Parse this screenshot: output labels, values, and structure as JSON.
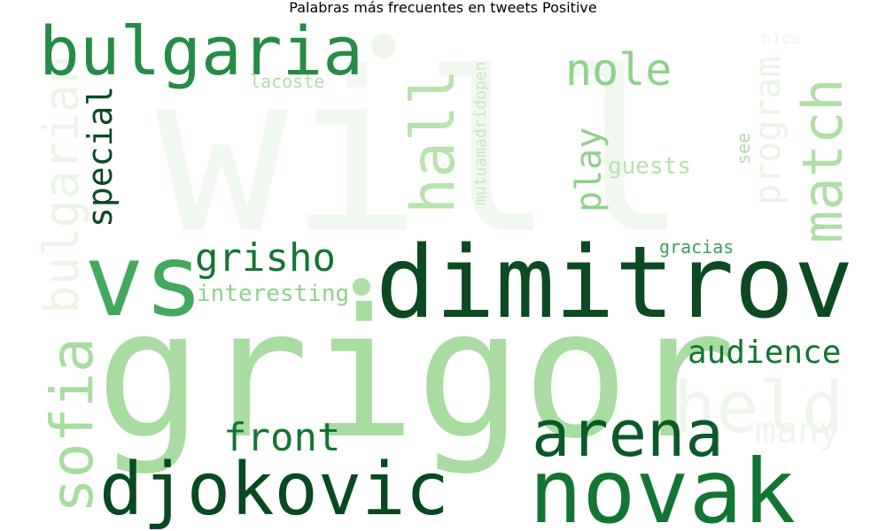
{
  "title": "Palabras más frecuentes en tweets Positive",
  "words": [
    {
      "text": "will",
      "color": "#f1f8ef"
    },
    {
      "text": "held",
      "color": "#eef6ec"
    },
    {
      "text": "bulgarian",
      "color": "#eaf5e6"
    },
    {
      "text": "many",
      "color": "#eef6ec"
    },
    {
      "text": "program",
      "color": "#e9f4e5"
    },
    {
      "text": "nice",
      "color": "#eef6ec"
    },
    {
      "text": "grigor",
      "color": "#a8dca0"
    },
    {
      "text": "sofia",
      "color": "#a8dca0"
    },
    {
      "text": "vs",
      "color": "#42a95d"
    },
    {
      "text": "dimitrov",
      "color": "#0b4a23"
    },
    {
      "text": "novak",
      "color": "#137533"
    },
    {
      "text": "arena",
      "color": "#0a5a28"
    },
    {
      "text": "djokovic",
      "color": "#074a22"
    },
    {
      "text": "bulgaria",
      "color": "#258c47"
    },
    {
      "text": "match",
      "color": "#b0dea7"
    },
    {
      "text": "hall",
      "color": "#b8e2ae"
    },
    {
      "text": "nole",
      "color": "#8fd18b"
    },
    {
      "text": "grisho",
      "color": "#137533"
    },
    {
      "text": "front",
      "color": "#137533"
    },
    {
      "text": "special",
      "color": "#0b4a23"
    },
    {
      "text": "play",
      "color": "#8fd18b"
    },
    {
      "text": "audience",
      "color": "#137533"
    },
    {
      "text": "interesting",
      "color": "#8fd18b"
    },
    {
      "text": "guests",
      "color": "#b8e2ae"
    },
    {
      "text": "mutuamadridopen",
      "color": "#c7e8bf"
    },
    {
      "text": "lacoste",
      "color": "#b0dea7"
    },
    {
      "text": "gracias",
      "color": "#3f9e58"
    },
    {
      "text": "see",
      "color": "#b0dea7"
    }
  ]
}
